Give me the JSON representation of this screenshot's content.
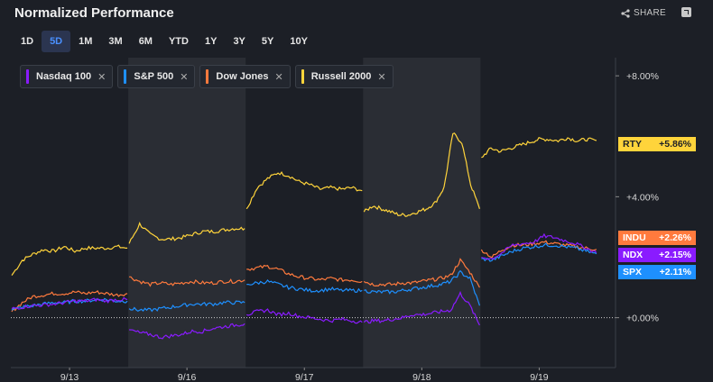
{
  "header": {
    "title": "Normalized Performance",
    "share_label": "SHARE"
  },
  "tabs": [
    {
      "label": "1D",
      "active": false
    },
    {
      "label": "5D",
      "active": true
    },
    {
      "label": "1M",
      "active": false
    },
    {
      "label": "3M",
      "active": false
    },
    {
      "label": "6M",
      "active": false
    },
    {
      "label": "YTD",
      "active": false
    },
    {
      "label": "1Y",
      "active": false
    },
    {
      "label": "3Y",
      "active": false
    },
    {
      "label": "5Y",
      "active": false
    },
    {
      "label": "10Y",
      "active": false
    }
  ],
  "colors": {
    "background": "#1c1f26",
    "shade": "#2a2d34",
    "grid": "#3a3f48",
    "ndx": "#8a1bff",
    "spx": "#1e90ff",
    "indu": "#ff7a3d",
    "rty": "#ffd43b"
  },
  "chart_data": {
    "type": "line",
    "title": "Normalized Performance",
    "x_ticks": [
      "9/13",
      "9/16",
      "9/17",
      "9/18",
      "9/19"
    ],
    "y_ticks": [
      "+0.00%",
      "+4.00%",
      "+8.00%"
    ],
    "y_tick_values": [
      0,
      4,
      8
    ],
    "ylim": [
      -1.65,
      8.6
    ],
    "legend_placement": "top-left",
    "grid": false,
    "series": [
      {
        "name": "Nasdaq 100",
        "key": "ndx",
        "ticker": "NDX",
        "last": "+2.15%",
        "color": "#8a1bff",
        "days": [
          [
            0.3,
            0.35,
            0.4,
            0.42,
            0.45,
            0.5,
            0.55,
            0.55,
            0.6,
            0.55,
            0.6,
            0.6
          ],
          [
            -0.4,
            -0.5,
            -0.55,
            -0.65,
            -0.6,
            -0.55,
            -0.45,
            -0.45,
            -0.35,
            -0.3,
            -0.25,
            -0.2
          ],
          [
            0.1,
            0.2,
            0.25,
            0.1,
            0.15,
            0.05,
            0.0,
            -0.05,
            -0.1,
            -0.05,
            -0.1,
            -0.15
          ],
          [
            -0.15,
            -0.1,
            -0.1,
            -0.05,
            0.0,
            0.1,
            0.1,
            0.15,
            0.2,
            0.25,
            0.8,
            0.4,
            -0.25
          ],
          [
            2.0,
            1.95,
            2.15,
            2.4,
            2.45,
            2.5,
            2.7,
            2.65,
            2.55,
            2.45,
            2.3,
            2.15
          ]
        ]
      },
      {
        "name": "S&P 500",
        "key": "spx",
        "ticker": "SPX",
        "last": "+2.11%",
        "color": "#1e90ff",
        "days": [
          [
            0.25,
            0.35,
            0.4,
            0.45,
            0.5,
            0.5,
            0.55,
            0.55,
            0.6,
            0.6,
            0.55,
            0.55
          ],
          [
            0.3,
            0.25,
            0.25,
            0.3,
            0.35,
            0.4,
            0.45,
            0.45,
            0.45,
            0.5,
            0.5,
            0.5
          ],
          [
            1.1,
            1.15,
            1.2,
            1.1,
            1.0,
            0.95,
            0.9,
            0.9,
            0.95,
            0.9,
            0.9,
            0.9
          ],
          [
            0.9,
            0.85,
            0.85,
            0.85,
            0.9,
            0.95,
            1.0,
            1.05,
            1.1,
            1.2,
            1.5,
            1.3,
            0.4
          ],
          [
            1.95,
            1.9,
            2.05,
            2.2,
            2.3,
            2.35,
            2.4,
            2.4,
            2.35,
            2.3,
            2.2,
            2.11
          ]
        ]
      },
      {
        "name": "Dow Jones",
        "key": "indu",
        "ticker": "INDU",
        "last": "+2.26%",
        "color": "#ff7a3d",
        "days": [
          [
            0.2,
            0.5,
            0.7,
            0.75,
            0.8,
            0.8,
            0.85,
            0.8,
            0.85,
            0.8,
            0.75,
            0.8
          ],
          [
            1.35,
            1.2,
            1.1,
            1.15,
            1.1,
            1.15,
            1.2,
            1.15,
            1.15,
            1.2,
            1.2,
            1.25
          ],
          [
            1.6,
            1.65,
            1.7,
            1.6,
            1.45,
            1.35,
            1.3,
            1.25,
            1.3,
            1.25,
            1.25,
            1.2
          ],
          [
            1.2,
            1.1,
            1.1,
            1.1,
            1.15,
            1.15,
            1.2,
            1.25,
            1.3,
            1.4,
            1.9,
            1.5,
            1.0
          ],
          [
            2.25,
            2.0,
            2.25,
            2.4,
            2.4,
            2.45,
            2.5,
            2.45,
            2.4,
            2.35,
            2.3,
            2.26
          ]
        ]
      },
      {
        "name": "Russell 2000",
        "key": "rty",
        "ticker": "RTY",
        "last": "+5.86%",
        "color": "#ffd43b",
        "days": [
          [
            1.4,
            1.9,
            2.1,
            2.25,
            2.2,
            2.35,
            2.2,
            2.3,
            2.3,
            2.3,
            2.35,
            2.3
          ],
          [
            2.45,
            3.1,
            2.75,
            2.6,
            2.6,
            2.65,
            2.75,
            2.85,
            2.85,
            2.9,
            2.95,
            2.95
          ],
          [
            3.6,
            4.3,
            4.6,
            4.8,
            4.7,
            4.5,
            4.4,
            4.25,
            4.3,
            4.25,
            4.3,
            4.2
          ],
          [
            3.5,
            3.7,
            3.6,
            3.5,
            3.4,
            3.4,
            3.5,
            3.6,
            3.8,
            4.3,
            6.1,
            5.8,
            4.4,
            3.6
          ],
          [
            5.3,
            5.6,
            5.5,
            5.6,
            5.7,
            5.8,
            5.9,
            5.9,
            5.85,
            5.95,
            5.85,
            5.9,
            5.86
          ]
        ]
      }
    ]
  }
}
